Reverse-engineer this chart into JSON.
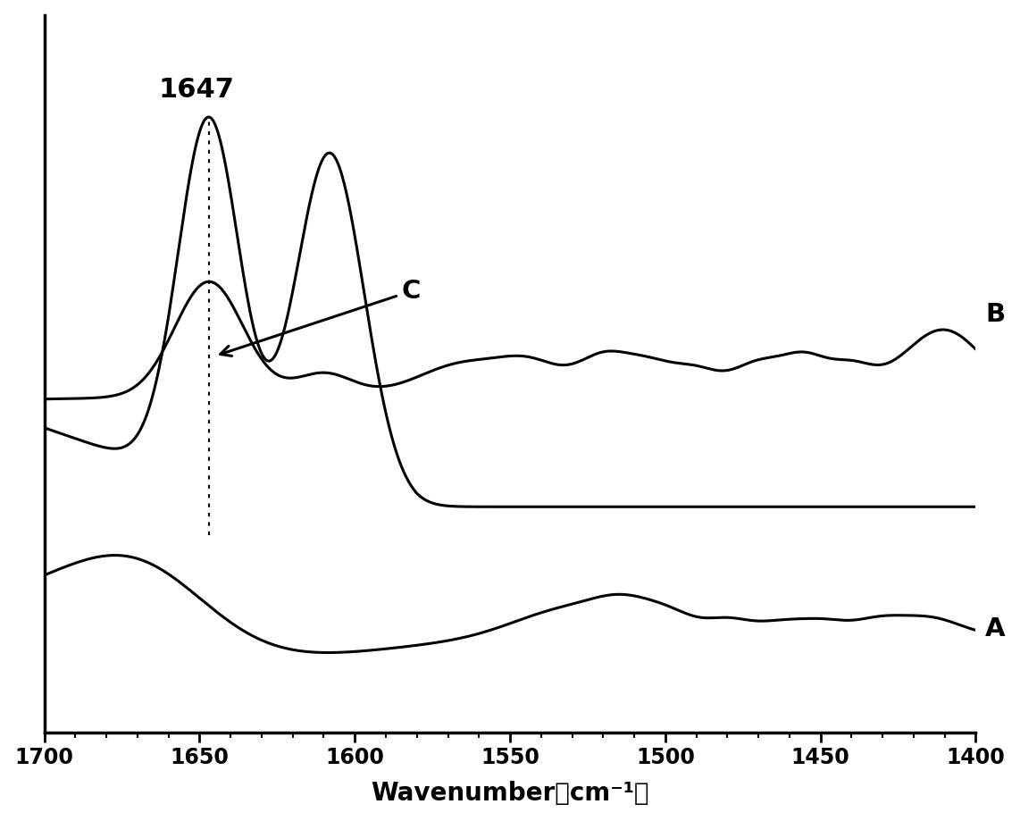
{
  "xlabel": "Wavenumber（cm⁻¹）",
  "xlabel_fontsize": 20,
  "tick_fontsize": 17,
  "background_color": "#ffffff",
  "line_color": "#000000",
  "line_width": 2.2,
  "annotation_1647": "1647",
  "label_A": "A",
  "label_B": "B",
  "label_C": "C",
  "xticks": [
    1700,
    1650,
    1600,
    1550,
    1500,
    1450,
    1400
  ]
}
